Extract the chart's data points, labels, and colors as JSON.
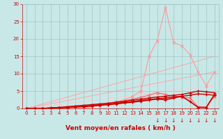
{
  "xlabel": "Vent moyen/en rafales ( km/h )",
  "xlim": [
    -0.5,
    23.5
  ],
  "ylim": [
    0,
    30
  ],
  "xticks": [
    0,
    1,
    2,
    3,
    4,
    5,
    6,
    7,
    8,
    9,
    10,
    11,
    12,
    13,
    14,
    15,
    16,
    17,
    18,
    19,
    20,
    21,
    22,
    23
  ],
  "yticks": [
    0,
    5,
    10,
    15,
    20,
    25,
    30
  ],
  "background_color": "#c8e8e8",
  "grid_color": "#a0c4c4",
  "line_peak": {
    "x": [
      0,
      1,
      2,
      3,
      4,
      5,
      6,
      7,
      8,
      9,
      10,
      11,
      12,
      13,
      14,
      15,
      16,
      17,
      18,
      19,
      20,
      21,
      22,
      23
    ],
    "y": [
      0,
      0,
      0,
      0,
      0,
      0,
      0,
      0,
      0.5,
      1.0,
      1.5,
      2.0,
      2.5,
      3.5,
      5.0,
      15.0,
      19.5,
      29.0,
      19.0,
      18.0,
      15.5,
      10.5,
      6.5,
      10.5
    ],
    "color": "#ff9999",
    "lw": 0.8,
    "marker": "x",
    "ms": 2.5
  },
  "line_diag1": {
    "x": [
      0,
      23
    ],
    "y": [
      0,
      15.0
    ],
    "color": "#ffaaaa",
    "lw": 0.8
  },
  "line_diag2": {
    "x": [
      0,
      23
    ],
    "y": [
      0,
      10.5
    ],
    "color": "#ffaaaa",
    "lw": 0.8
  },
  "line_diag3": {
    "x": [
      0,
      23
    ],
    "y": [
      0,
      6.5
    ],
    "color": "#ffcccc",
    "lw": 0.8
  },
  "line_dark1": {
    "x": [
      0,
      1,
      2,
      3,
      4,
      5,
      6,
      7,
      8,
      9,
      10,
      11,
      12,
      13,
      14,
      15,
      16,
      17,
      18,
      19,
      20,
      21,
      22,
      23
    ],
    "y": [
      0,
      0,
      0,
      0.2,
      0.3,
      0.5,
      0.7,
      0.9,
      1.1,
      1.3,
      1.5,
      1.8,
      2.1,
      2.4,
      2.7,
      3.0,
      3.3,
      3.5,
      3.8,
      4.0,
      4.5,
      5.0,
      4.8,
      4.5
    ],
    "color": "#cc0000",
    "lw": 1.0,
    "marker": "+",
    "ms": 3.0
  },
  "line_dark2": {
    "x": [
      0,
      1,
      2,
      3,
      4,
      5,
      6,
      7,
      8,
      9,
      10,
      11,
      12,
      13,
      14,
      15,
      16,
      17,
      18,
      19,
      20,
      21,
      22,
      23
    ],
    "y": [
      0,
      0,
      0,
      0.1,
      0.2,
      0.3,
      0.5,
      0.6,
      0.8,
      1.0,
      1.2,
      1.5,
      1.8,
      2.0,
      2.3,
      2.6,
      2.8,
      3.0,
      3.3,
      3.5,
      3.8,
      4.2,
      4.0,
      3.8
    ],
    "color": "#cc0000",
    "lw": 1.0,
    "marker": "+",
    "ms": 3.0
  },
  "line_dark3": {
    "x": [
      0,
      1,
      2,
      3,
      4,
      5,
      6,
      7,
      8,
      9,
      10,
      11,
      12,
      13,
      14,
      15,
      16,
      17,
      18,
      19,
      20,
      21,
      22,
      23
    ],
    "y": [
      0,
      0,
      0,
      0.1,
      0.2,
      0.3,
      0.4,
      0.5,
      0.7,
      0.9,
      1.1,
      1.3,
      1.6,
      1.8,
      2.1,
      2.4,
      2.7,
      2.5,
      3.0,
      3.5,
      2.0,
      0.3,
      0.3,
      4.0
    ],
    "color": "#cc0000",
    "lw": 1.2,
    "marker": "+",
    "ms": 3.0
  },
  "line_medium1": {
    "x": [
      0,
      1,
      2,
      3,
      4,
      5,
      6,
      7,
      8,
      9,
      10,
      11,
      12,
      13,
      14,
      15,
      16,
      17,
      18,
      19,
      20,
      21,
      22,
      23
    ],
    "y": [
      0,
      0,
      0,
      0.1,
      0.2,
      0.4,
      0.6,
      0.8,
      1.0,
      1.2,
      1.5,
      1.8,
      2.2,
      2.7,
      3.2,
      3.8,
      4.5,
      4.0,
      3.5,
      3.2,
      3.0,
      0.5,
      0.3,
      3.5
    ],
    "color": "#ff6666",
    "lw": 0.9,
    "marker": "x",
    "ms": 2.5
  },
  "arrows_x": [
    16,
    17,
    18,
    19,
    20,
    21,
    22,
    23
  ],
  "arrow_color": "#cc0000",
  "xlabel_color": "#cc0000",
  "tick_color": "#cc0000"
}
